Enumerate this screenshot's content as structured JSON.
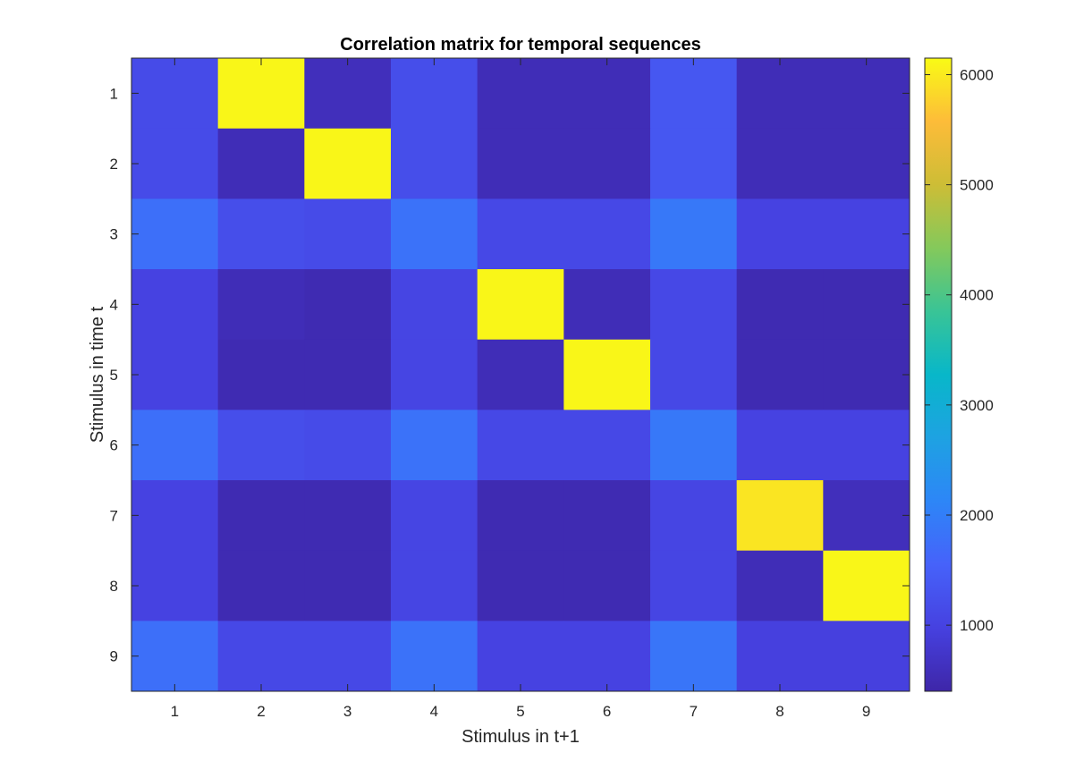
{
  "chart_data": {
    "type": "heatmap",
    "title": "Correlation matrix for temporal sequences",
    "xlabel": "Stimulus in t+1",
    "ylabel": "Stimulus in time t",
    "x_categories": [
      "1",
      "2",
      "3",
      "4",
      "5",
      "6",
      "7",
      "8",
      "9"
    ],
    "y_categories": [
      "1",
      "2",
      "3",
      "4",
      "5",
      "6",
      "7",
      "8",
      "9"
    ],
    "values": [
      [
        1150,
        6100,
        600,
        1200,
        550,
        550,
        1350,
        550,
        550
      ],
      [
        1150,
        550,
        6100,
        1200,
        550,
        550,
        1350,
        550,
        550
      ],
      [
        1750,
        1200,
        1150,
        1800,
        1100,
        1100,
        1900,
        1000,
        1000
      ],
      [
        1000,
        550,
        500,
        1050,
        6100,
        550,
        1100,
        500,
        500
      ],
      [
        1000,
        500,
        500,
        1050,
        550,
        6100,
        1100,
        500,
        500
      ],
      [
        1750,
        1200,
        1150,
        1800,
        1100,
        1100,
        1900,
        1000,
        1000
      ],
      [
        1000,
        500,
        500,
        1050,
        500,
        500,
        1050,
        5950,
        600
      ],
      [
        1000,
        500,
        500,
        1050,
        500,
        500,
        1050,
        550,
        6100
      ],
      [
        1750,
        1100,
        1100,
        1800,
        1000,
        1000,
        1850,
        950,
        950
      ]
    ],
    "colormap": "parula",
    "clim": [
      400,
      6150
    ],
    "colorbar_ticks": [
      1000,
      2000,
      3000,
      4000,
      5000,
      6000
    ],
    "colorbar_tick_labels": [
      "1000",
      "2000",
      "3000",
      "4000",
      "5000",
      "6000"
    ],
    "grid": false
  }
}
